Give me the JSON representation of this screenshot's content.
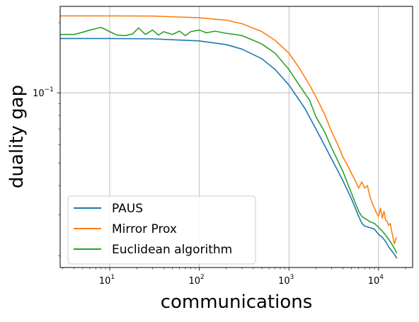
{
  "chart_data": {
    "type": "line",
    "title": "",
    "xlabel": "communications",
    "ylabel": "duality gap",
    "x_scale": "log",
    "y_scale": "log",
    "xlim": [
      2.8,
      24000
    ],
    "ylim": [
      0.0178,
      0.235
    ],
    "grid": true,
    "legend_position": "lower-left",
    "x_ticks": [
      {
        "value": 10,
        "base": "10",
        "exp": "1"
      },
      {
        "value": 100,
        "base": "10",
        "exp": "2"
      },
      {
        "value": 1000,
        "base": "10",
        "exp": "3"
      },
      {
        "value": 10000,
        "base": "10",
        "exp": "4"
      }
    ],
    "y_ticks": [
      {
        "value": 0.1,
        "base": "10",
        "exp": "−1"
      }
    ],
    "series": [
      {
        "name": "PAUS",
        "color": "#1f77b4",
        "x": [
          2.8,
          10,
          30,
          100,
          200,
          300,
          500,
          700,
          1000,
          1500,
          2000,
          3000,
          4000,
          5000,
          6000,
          6500,
          7000,
          8000,
          9000,
          10000,
          11000,
          12000,
          13000,
          14000,
          15000,
          16000
        ],
        "y": [
          0.171,
          0.171,
          0.1705,
          0.167,
          0.161,
          0.154,
          0.14,
          0.126,
          0.108,
          0.086,
          0.07,
          0.052,
          0.042,
          0.035,
          0.0295,
          0.0276,
          0.0268,
          0.0264,
          0.026,
          0.0247,
          0.024,
          0.023,
          0.0218,
          0.021,
          0.0203,
          0.0195
        ]
      },
      {
        "name": "Mirror Prox",
        "color": "#ff7f0e",
        "x": [
          2.8,
          10,
          30,
          100,
          200,
          300,
          500,
          700,
          1000,
          1300,
          1700,
          2000,
          2500,
          3000,
          3500,
          4000,
          4500,
          5000,
          5500,
          6000,
          6500,
          7000,
          7500,
          8000,
          8500,
          9000,
          9500,
          10000,
          10500,
          11000,
          11500,
          12000,
          12500,
          13000,
          13500,
          14000,
          14500,
          15000,
          15500,
          16000
        ],
        "y": [
          0.214,
          0.214,
          0.2135,
          0.21,
          0.205,
          0.198,
          0.183,
          0.168,
          0.148,
          0.128,
          0.108,
          0.096,
          0.081,
          0.068,
          0.06,
          0.053,
          0.049,
          0.045,
          0.042,
          0.039,
          0.0415,
          0.039,
          0.04,
          0.036,
          0.0335,
          0.032,
          0.0305,
          0.0295,
          0.032,
          0.029,
          0.031,
          0.0285,
          0.028,
          0.027,
          0.0275,
          0.0255,
          0.024,
          0.0225,
          0.0235,
          0.024
        ]
      },
      {
        "name": "Euclidean algorithm",
        "color": "#2ca02c",
        "x": [
          2.8,
          4,
          5,
          6,
          8,
          10,
          12,
          15,
          18,
          21,
          25,
          30,
          35,
          40,
          50,
          60,
          70,
          80,
          100,
          120,
          150,
          200,
          250,
          300,
          400,
          500,
          700,
          1000,
          1300,
          1700,
          2000,
          2500,
          3000,
          4000,
          5000,
          6000,
          6500,
          7000,
          8000,
          9000,
          10000,
          11000,
          12000,
          13000,
          14000,
          15000,
          16000
        ],
        "y": [
          0.178,
          0.178,
          0.182,
          0.186,
          0.191,
          0.183,
          0.177,
          0.176,
          0.179,
          0.19,
          0.178,
          0.186,
          0.177,
          0.183,
          0.178,
          0.184,
          0.176,
          0.183,
          0.186,
          0.181,
          0.184,
          0.18,
          0.178,
          0.176,
          0.168,
          0.162,
          0.148,
          0.126,
          0.108,
          0.093,
          0.079,
          0.068,
          0.058,
          0.046,
          0.037,
          0.031,
          0.0295,
          0.029,
          0.028,
          0.0275,
          0.0265,
          0.0255,
          0.0245,
          0.0235,
          0.0225,
          0.0215,
          0.0205
        ]
      }
    ]
  }
}
